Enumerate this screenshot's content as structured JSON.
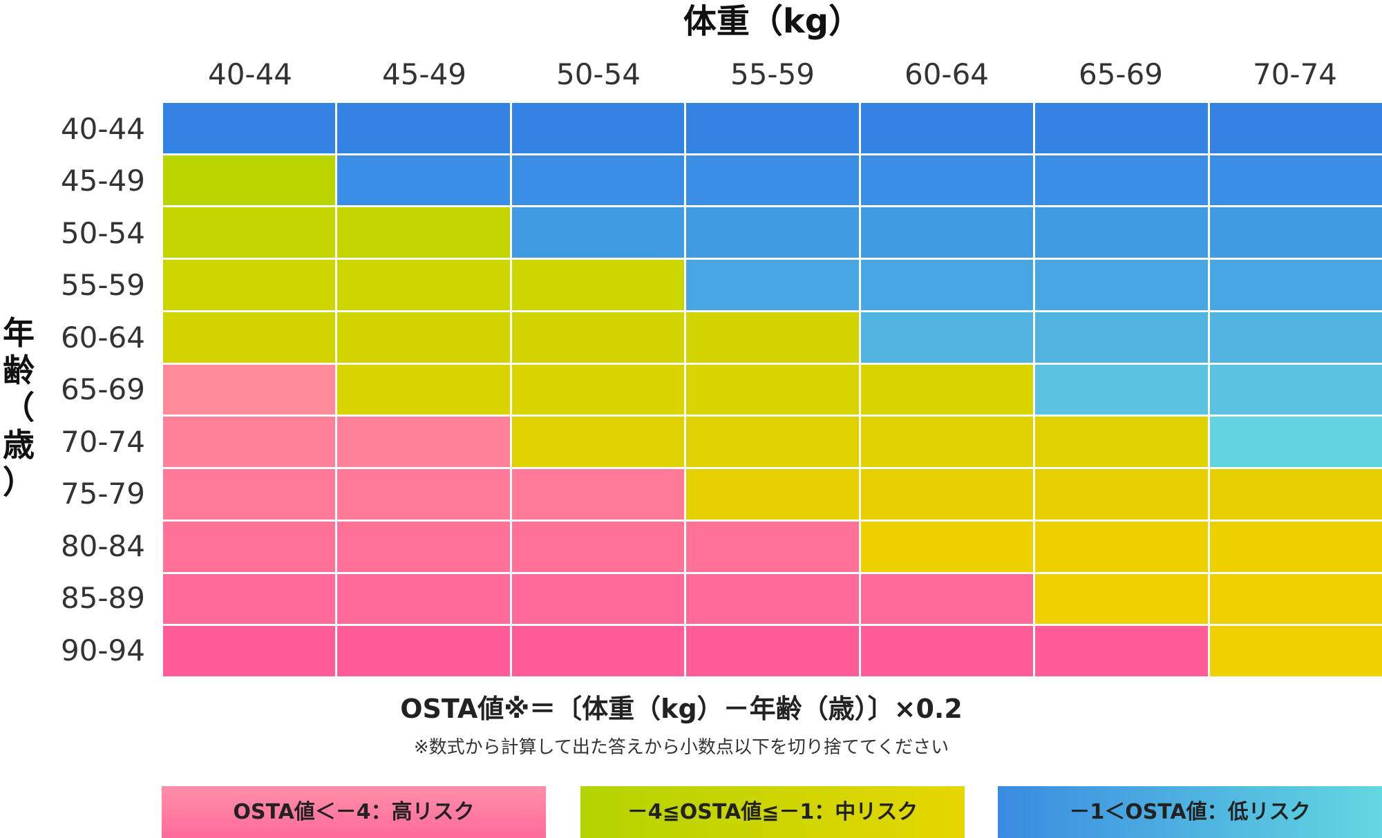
{
  "chart_data": {
    "type": "heatmap",
    "title": "",
    "xlabel": "体重（kg）",
    "ylabel": "年齢（歳）",
    "x_categories": [
      "40-44",
      "45-49",
      "50-54",
      "55-59",
      "60-64",
      "65-69",
      "70-74"
    ],
    "y_categories": [
      "40-44",
      "45-49",
      "50-54",
      "55-59",
      "60-64",
      "65-69",
      "70-74",
      "75-79",
      "80-84",
      "85-89",
      "90-94"
    ],
    "risk_matrix": [
      [
        "low",
        "low",
        "low",
        "low",
        "low",
        "low",
        "low"
      ],
      [
        "mid",
        "low",
        "low",
        "low",
        "low",
        "low",
        "low"
      ],
      [
        "mid",
        "mid",
        "low",
        "low",
        "low",
        "low",
        "low"
      ],
      [
        "mid",
        "mid",
        "mid",
        "low",
        "low",
        "low",
        "low"
      ],
      [
        "mid",
        "mid",
        "mid",
        "mid",
        "low",
        "low",
        "low"
      ],
      [
        "high",
        "mid",
        "mid",
        "mid",
        "mid",
        "low",
        "low"
      ],
      [
        "high",
        "high",
        "mid",
        "mid",
        "mid",
        "mid",
        "low"
      ],
      [
        "high",
        "high",
        "high",
        "mid",
        "mid",
        "mid",
        "mid"
      ],
      [
        "high",
        "high",
        "high",
        "high",
        "mid",
        "mid",
        "mid"
      ],
      [
        "high",
        "high",
        "high",
        "high",
        "high",
        "mid",
        "mid"
      ],
      [
        "high",
        "high",
        "high",
        "high",
        "high",
        "high",
        "mid"
      ]
    ],
    "formula": "OSTA値※＝〔体重（kg）－年齢（歳）〕×0.2",
    "formula_note": "※数式から計算して出た答えから小数点以下を切り捨ててください",
    "legend": [
      {
        "key": "high",
        "label": "OSTA値＜－4：高リスク"
      },
      {
        "key": "mid",
        "label": "－4≦OSTA値≦－1：中リスク"
      },
      {
        "key": "low",
        "label": "－1＜OSTA値：低リスク"
      }
    ],
    "colors": {
      "high": [
        "#ff9a9a",
        "#ff8a9a",
        "#ff8099",
        "#ff7a97",
        "#ff7196",
        "#ff6a99",
        "#ff5c98"
      ],
      "mid": [
        "#b3d400",
        "#bad400",
        "#c4d500",
        "#cbd500",
        "#d2d400",
        "#d9d300",
        "#e0d200",
        "#e6d100",
        "#ecd000",
        "#efd000",
        "#f0d000"
      ],
      "low": [
        "#3383e3",
        "#3a8ee3",
        "#419be3",
        "#47a7e2",
        "#50b3e0",
        "#5ac2df",
        "#62d4df"
      ]
    }
  }
}
